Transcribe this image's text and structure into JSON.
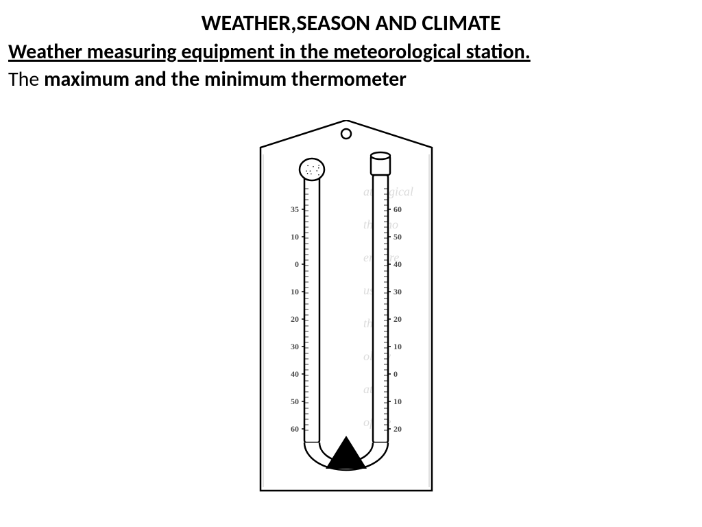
{
  "title": "WEATHER,SEASON AND CLIMATE",
  "subtitle": "Weather measuring equipment in the meteorological station.",
  "body_prefix": "The ",
  "body_bold": "maximum and the minimum thermometer",
  "thermometer": {
    "type": "diagram",
    "stroke": "#000000",
    "fill": "#ffffff",
    "left_scale": [
      "35",
      "10",
      "0",
      "10",
      "20",
      "30",
      "40",
      "50",
      "60"
    ],
    "right_scale": [
      "60",
      "50",
      "40",
      "30",
      "20",
      "10",
      "0",
      "10",
      "20"
    ],
    "scale_fontsize": 12,
    "scale_color": "#4a4a4a",
    "bulb_fill": "#000000",
    "background_noise_color": "#dcdcdc"
  }
}
